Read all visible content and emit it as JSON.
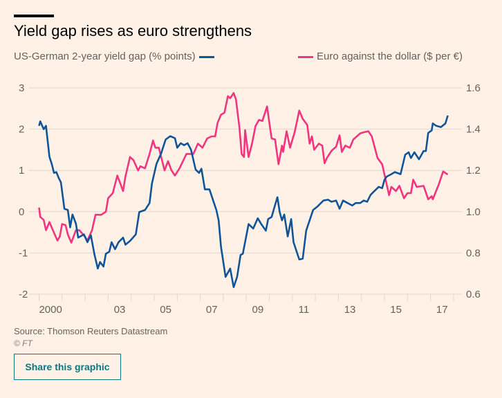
{
  "header": {
    "title": "Yield gap rises as euro strengthens"
  },
  "legend": {
    "left": "US-German 2-year yield gap (% points)",
    "right": "Euro against the dollar ($ per €)"
  },
  "footer": {
    "source": "Source: Thomson Reuters Datastream",
    "copyright": "© FT",
    "share_label": "Share this graphic"
  },
  "colors": {
    "yield": "#0f5499",
    "euro": "#f2347f",
    "grid": "#e0d6cd",
    "background": "#fff1e5"
  },
  "chart_data": {
    "type": "line",
    "title": "Yield gap rises as euro strengthens",
    "left_axis": {
      "label": "US-German 2-year yield gap (% points)",
      "range": [
        -2,
        3
      ],
      "ticks": [
        "3",
        "2",
        "1",
        "0",
        "-1",
        "-2"
      ],
      "tick_values": [
        3,
        2,
        1,
        0,
        -1,
        -2
      ]
    },
    "right_axis": {
      "label": "Euro against the dollar ($ per €)",
      "range": [
        0.6,
        1.6
      ],
      "ticks": [
        "1.6",
        "1.4",
        "1.2",
        "1.0",
        "0.8",
        "0.6"
      ],
      "tick_values": [
        1.6,
        1.4,
        1.2,
        1.0,
        0.8,
        0.6
      ]
    },
    "x_range": [
      2000,
      2018
    ],
    "x_tick_labels": [
      {
        "year": 2000,
        "label": "2000"
      },
      {
        "year": 2003,
        "label": "03"
      },
      {
        "year": 2005,
        "label": "05"
      },
      {
        "year": 2007,
        "label": "07"
      },
      {
        "year": 2009,
        "label": "09"
      },
      {
        "year": 2011,
        "label": "11"
      },
      {
        "year": 2013,
        "label": "13"
      },
      {
        "year": 2015,
        "label": "15"
      },
      {
        "year": 2017,
        "label": "17"
      }
    ],
    "grid": true,
    "series": [
      {
        "name": "US-German 2-year yield gap (% points)",
        "axis": "left",
        "x": [
          2000.0,
          2000.05,
          2000.2,
          2000.3,
          2000.45,
          2000.55,
          2000.65,
          2000.75,
          2000.85,
          2000.95,
          2001.1,
          2001.25,
          2001.35,
          2001.45,
          2001.6,
          2001.7,
          2001.95,
          2002.1,
          2002.25,
          2002.4,
          2002.55,
          2002.65,
          2002.8,
          2002.9,
          2003.05,
          2003.15,
          2003.3,
          2003.45,
          2003.65,
          2003.75,
          2003.95,
          2004.2,
          2004.35,
          2004.6,
          2004.8,
          2004.9,
          2005.1,
          2005.3,
          2005.5,
          2005.7,
          2005.9,
          2006.0,
          2006.15,
          2006.3,
          2006.45,
          2006.6,
          2006.8,
          2006.95,
          2007.05,
          2007.2,
          2007.4,
          2007.7,
          2007.8,
          2007.9,
          2008.1,
          2008.3,
          2008.45,
          2008.6,
          2008.75,
          2008.85,
          2009.1,
          2009.3,
          2009.5,
          2009.65,
          2009.85,
          2009.95,
          2010.1,
          2010.25,
          2010.35,
          2010.45,
          2010.55,
          2010.65,
          2010.8,
          2010.95,
          2011.05,
          2011.3,
          2011.45,
          2011.6,
          2011.75,
          2011.9,
          2012.1,
          2012.35,
          2012.55,
          2012.7,
          2012.9,
          2013.05,
          2013.2,
          2013.4,
          2013.6,
          2013.75,
          2013.95,
          2014.1,
          2014.25,
          2014.4,
          2014.6,
          2014.75,
          2014.9,
          2015.0,
          2015.1,
          2015.3,
          2015.45,
          2015.7,
          2015.9,
          2016.05,
          2016.15,
          2016.3,
          2016.5,
          2016.7,
          2016.8,
          2016.9,
          2017.05,
          2017.1,
          2017.25,
          2017.45,
          2017.65,
          2017.75
        ],
        "y": [
          2.08,
          2.19,
          2.0,
          2.08,
          1.33,
          1.16,
          0.94,
          0.96,
          0.82,
          0.71,
          0.07,
          0.04,
          -0.38,
          -0.07,
          -0.29,
          -0.63,
          -0.55,
          -0.74,
          -0.57,
          -1.02,
          -1.38,
          -1.22,
          -1.33,
          -1.02,
          -0.97,
          -0.74,
          -0.91,
          -0.74,
          -0.63,
          -0.8,
          -0.71,
          -0.55,
          -0.01,
          0.04,
          0.21,
          0.68,
          1.16,
          1.41,
          1.75,
          1.83,
          1.78,
          1.55,
          1.66,
          1.61,
          1.66,
          1.5,
          1.02,
          0.94,
          1.04,
          0.54,
          0.54,
          0.04,
          -0.21,
          -0.85,
          -1.58,
          -1.38,
          -1.83,
          -1.58,
          -1.05,
          -1.02,
          -0.3,
          -0.41,
          -0.16,
          -0.3,
          -0.46,
          -0.18,
          -0.13,
          0.16,
          0.35,
          -0.01,
          -0.21,
          -0.07,
          -0.6,
          -0.18,
          -0.74,
          -1.16,
          -1.14,
          -0.46,
          -0.21,
          0.04,
          0.13,
          0.27,
          0.29,
          0.24,
          0.27,
          0.07,
          0.27,
          0.21,
          0.15,
          0.21,
          0.21,
          0.27,
          0.24,
          0.41,
          0.52,
          0.6,
          0.57,
          0.77,
          0.85,
          0.91,
          0.96,
          0.91,
          1.38,
          1.44,
          1.3,
          1.44,
          1.27,
          1.47,
          1.47,
          1.91,
          1.97,
          2.14,
          2.08,
          2.05,
          2.14,
          2.33
        ]
      },
      {
        "name": "Euro against the dollar ($ per €)",
        "axis": "right",
        "x": [
          2000.0,
          2000.05,
          2000.2,
          2000.3,
          2000.45,
          2000.6,
          2000.8,
          2000.9,
          2001.0,
          2001.15,
          2001.25,
          2001.4,
          2001.6,
          2001.75,
          2001.95,
          2002.1,
          2002.3,
          2002.45,
          2002.7,
          2002.9,
          2003.0,
          2003.2,
          2003.4,
          2003.65,
          2003.75,
          2003.95,
          2004.1,
          2004.3,
          2004.4,
          2004.6,
          2004.8,
          2004.95,
          2005.05,
          2005.2,
          2005.45,
          2005.6,
          2005.75,
          2005.9,
          2006.1,
          2006.4,
          2006.7,
          2006.9,
          2007.1,
          2007.3,
          2007.5,
          2007.65,
          2007.75,
          2007.9,
          2008.05,
          2008.2,
          2008.3,
          2008.45,
          2008.55,
          2008.7,
          2008.8,
          2008.9,
          2008.95,
          2009.1,
          2009.25,
          2009.4,
          2009.55,
          2009.7,
          2009.9,
          2010.1,
          2010.25,
          2010.4,
          2010.55,
          2010.6,
          2010.75,
          2010.9,
          2011.1,
          2011.3,
          2011.45,
          2011.65,
          2011.75,
          2011.85,
          2011.95,
          2012.15,
          2012.3,
          2012.4,
          2012.5,
          2012.7,
          2012.9,
          2013.05,
          2013.15,
          2013.3,
          2013.5,
          2013.65,
          2013.95,
          2014.1,
          2014.3,
          2014.45,
          2014.7,
          2014.9,
          2015.05,
          2015.2,
          2015.3,
          2015.5,
          2015.65,
          2015.85,
          2016.0,
          2016.15,
          2016.25,
          2016.4,
          2016.7,
          2016.9,
          2017.05,
          2017.1,
          2017.35,
          2017.55,
          2017.75
        ],
        "y": [
          1.02,
          0.975,
          0.96,
          0.91,
          0.95,
          0.91,
          0.86,
          0.88,
          0.94,
          0.935,
          0.89,
          0.85,
          0.91,
          0.91,
          0.885,
          0.86,
          0.91,
          0.985,
          0.985,
          1.0,
          1.065,
          1.09,
          1.175,
          1.1,
          1.17,
          1.265,
          1.25,
          1.2,
          1.22,
          1.21,
          1.28,
          1.345,
          1.31,
          1.31,
          1.2,
          1.245,
          1.2,
          1.175,
          1.21,
          1.28,
          1.28,
          1.33,
          1.31,
          1.355,
          1.365,
          1.365,
          1.43,
          1.47,
          1.48,
          1.56,
          1.55,
          1.575,
          1.545,
          1.41,
          1.28,
          1.265,
          1.395,
          1.265,
          1.33,
          1.415,
          1.445,
          1.44,
          1.51,
          1.355,
          1.35,
          1.23,
          1.32,
          1.29,
          1.39,
          1.31,
          1.385,
          1.49,
          1.45,
          1.42,
          1.33,
          1.365,
          1.3,
          1.33,
          1.32,
          1.235,
          1.26,
          1.295,
          1.315,
          1.37,
          1.29,
          1.32,
          1.31,
          1.35,
          1.38,
          1.385,
          1.39,
          1.365,
          1.26,
          1.23,
          1.155,
          1.08,
          1.12,
          1.1,
          1.125,
          1.065,
          1.09,
          1.09,
          1.155,
          1.12,
          1.125,
          1.06,
          1.075,
          1.06,
          1.13,
          1.195,
          1.18
        ]
      }
    ]
  }
}
